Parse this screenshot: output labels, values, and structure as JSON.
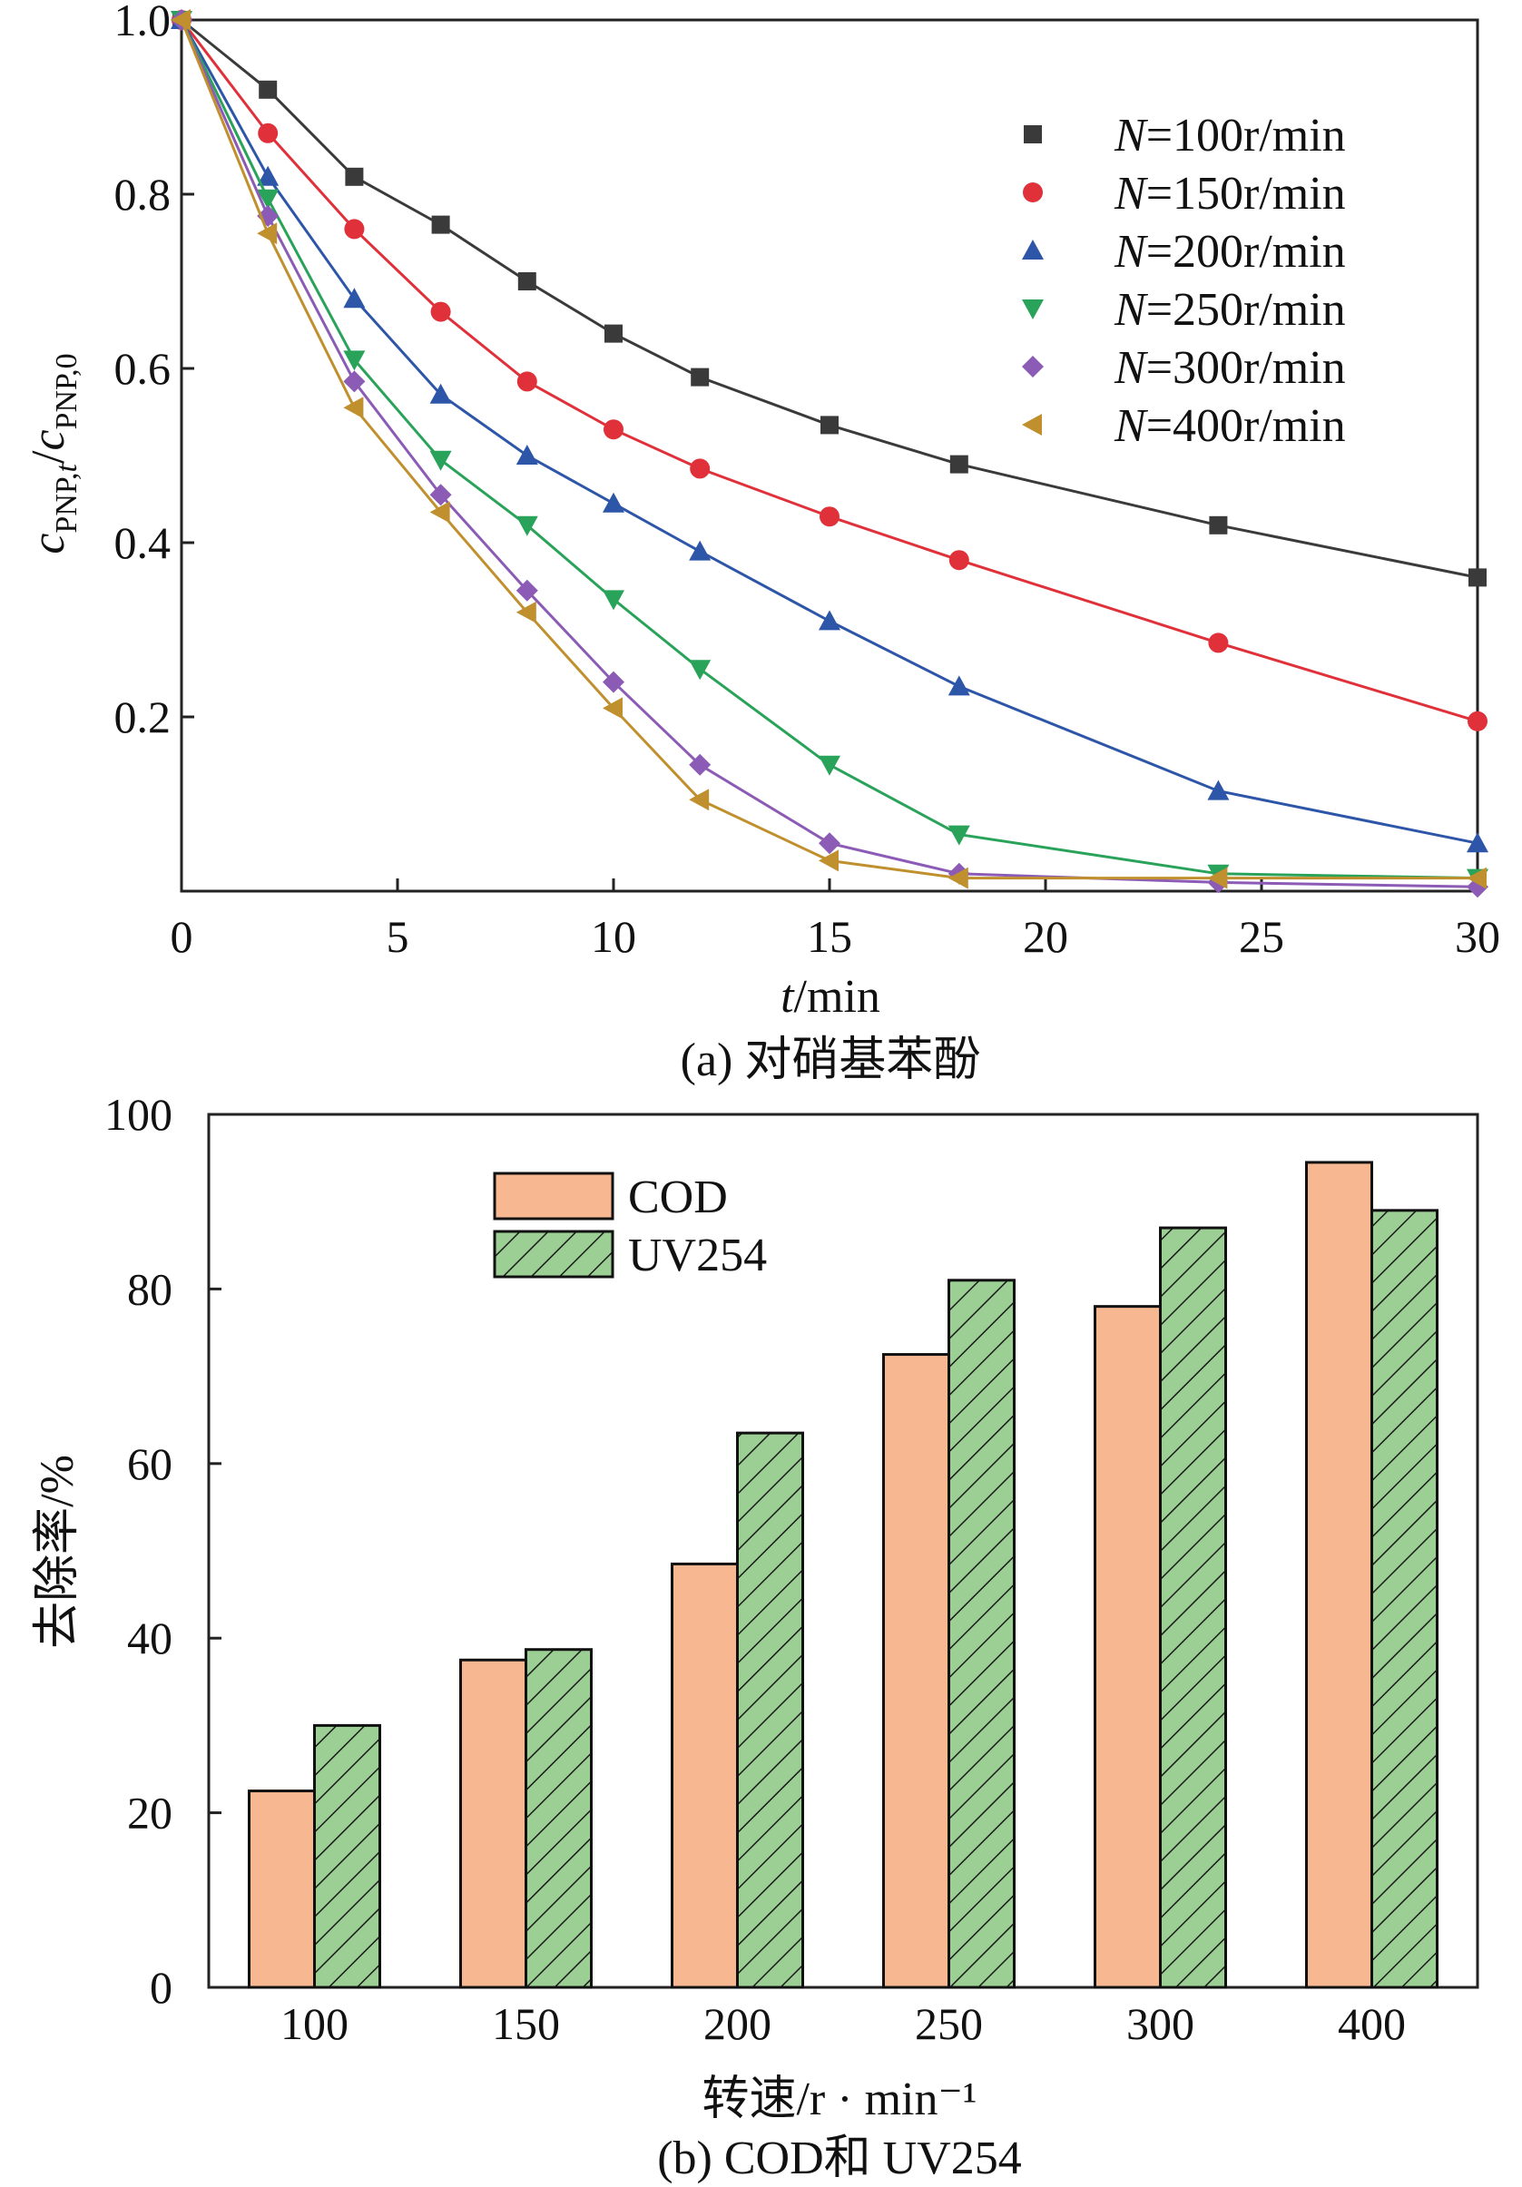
{
  "chart_data": [
    {
      "type": "line",
      "title": "",
      "caption": "(a) 对硝基苯酚",
      "xlabel": "t/min",
      "xlabel_italic": "t",
      "xlabel_rest": "/min",
      "ylabel": "c_PNP,t/c_PNP,0",
      "ylabel_parts": {
        "c1": "c",
        "sub1": "PNP,",
        "sub1_italic": "t",
        "slash": "/",
        "c2": "c",
        "sub2": "PNP,0"
      },
      "xlim": [
        0,
        30
      ],
      "ylim": [
        0,
        1.0
      ],
      "xticks": [
        0,
        5,
        10,
        15,
        20,
        25,
        30
      ],
      "xtick_labels": [
        "0",
        "5",
        "10",
        "15",
        "20",
        "25",
        "30"
      ],
      "yticks": [
        0.2,
        0.4,
        0.6,
        0.8,
        1.0
      ],
      "ytick_labels": [
        "0.2",
        "0.4",
        "0.6",
        "0.8",
        "1.0"
      ],
      "legend_position": "top-right",
      "x": [
        0,
        2,
        4,
        6,
        8,
        10,
        12,
        15,
        18,
        24,
        30
      ],
      "series": [
        {
          "name": "N=100r/min",
          "label_italic": "N",
          "label_rest": "=100r/min",
          "marker": "square",
          "color": "#3a3a3a",
          "values": [
            1.0,
            0.92,
            0.82,
            0.765,
            0.7,
            0.64,
            0.59,
            0.535,
            0.49,
            0.42,
            0.36
          ]
        },
        {
          "name": "N=150r/min",
          "label_italic": "N",
          "label_rest": "=150r/min",
          "marker": "circle",
          "color": "#e0313a",
          "values": [
            1.0,
            0.87,
            0.76,
            0.665,
            0.585,
            0.53,
            0.485,
            0.43,
            0.38,
            0.285,
            0.195
          ]
        },
        {
          "name": "N=200r/min",
          "label_italic": "N",
          "label_rest": "=200r/min",
          "marker": "triangle-up",
          "color": "#2e56a8",
          "values": [
            1.0,
            0.82,
            0.68,
            0.57,
            0.5,
            0.445,
            0.39,
            0.31,
            0.235,
            0.115,
            0.055
          ]
        },
        {
          "name": "N=250r/min",
          "label_italic": "N",
          "label_rest": "=250r/min",
          "marker": "triangle-down",
          "color": "#2aa35a",
          "values": [
            1.0,
            0.795,
            0.61,
            0.495,
            0.42,
            0.335,
            0.255,
            0.145,
            0.065,
            0.02,
            0.015
          ]
        },
        {
          "name": "N=300r/min",
          "label_italic": "N",
          "label_rest": "=300r/min",
          "marker": "diamond",
          "color": "#8c5bb5",
          "values": [
            1.0,
            0.775,
            0.585,
            0.455,
            0.345,
            0.24,
            0.145,
            0.055,
            0.02,
            0.01,
            0.005
          ]
        },
        {
          "name": "N=400r/min",
          "label_italic": "N",
          "label_rest": "=400r/min",
          "marker": "triangle-left",
          "color": "#c0902e",
          "values": [
            1.0,
            0.755,
            0.555,
            0.435,
            0.32,
            0.21,
            0.105,
            0.035,
            0.015,
            0.015,
            0.015
          ]
        }
      ]
    },
    {
      "type": "bar",
      "title": "",
      "caption": "(b) COD和 UV254",
      "xlabel": "转速/r · min⁻¹",
      "ylabel": "去除率/%",
      "ylim": [
        0,
        100
      ],
      "yticks": [
        0,
        20,
        40,
        60,
        80,
        100
      ],
      "ytick_labels": [
        "0",
        "20",
        "40",
        "60",
        "80",
        "100"
      ],
      "categories": [
        "100",
        "150",
        "200",
        "250",
        "300",
        "400"
      ],
      "legend_position": "top-left",
      "series": [
        {
          "name": "COD",
          "color": "#f7b891",
          "pattern": "solid",
          "values": [
            22.5,
            37.5,
            48.5,
            72.5,
            78,
            94.5
          ]
        },
        {
          "name": "UV254",
          "color": "#9ccf94",
          "pattern": "hatched",
          "values": [
            30,
            38.7,
            63.5,
            81,
            87,
            89
          ]
        }
      ]
    }
  ]
}
